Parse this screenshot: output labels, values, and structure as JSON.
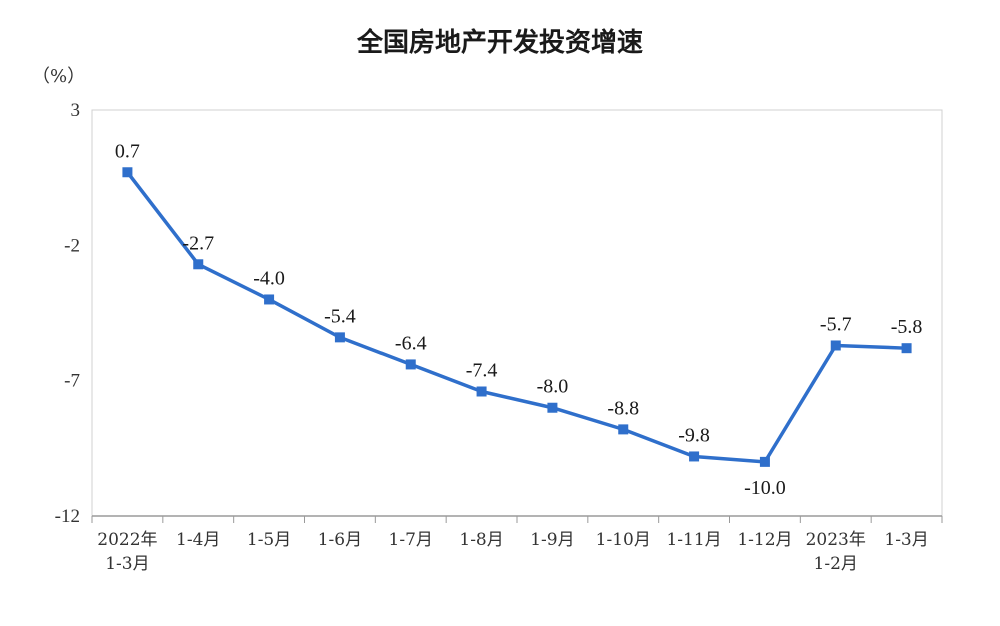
{
  "chart_data": {
    "type": "line",
    "title": "全国房地产开发投资增速",
    "unit": "（%）",
    "xlabel": "",
    "ylabel": "",
    "ylim": [
      -12,
      3
    ],
    "yticks": [
      "3",
      "-2",
      "-7",
      "-12"
    ],
    "categories": [
      [
        "2022年",
        "1-3月"
      ],
      [
        "1-4月"
      ],
      [
        "1-5月"
      ],
      [
        "1-6月"
      ],
      [
        "1-7月"
      ],
      [
        "1-8月"
      ],
      [
        "1-9月"
      ],
      [
        "1-10月"
      ],
      [
        "1-11月"
      ],
      [
        "1-12月"
      ],
      [
        "2023年",
        "1-2月"
      ],
      [
        "1-3月"
      ]
    ],
    "series": [
      {
        "values": [
          0.7,
          -2.7,
          -4.0,
          -5.4,
          -6.4,
          -7.4,
          -8.0,
          -8.8,
          -9.8,
          -10.0,
          -5.7,
          -5.8
        ],
        "labels": [
          "0.7",
          "-2.7",
          "-4.0",
          "-5.4",
          "-6.4",
          "-7.4",
          "-8.0",
          "-8.8",
          "-9.8",
          "-10.0",
          "-5.7",
          "-5.8"
        ],
        "color": "#2f6fcb"
      }
    ],
    "grid": false,
    "legend": "none"
  }
}
